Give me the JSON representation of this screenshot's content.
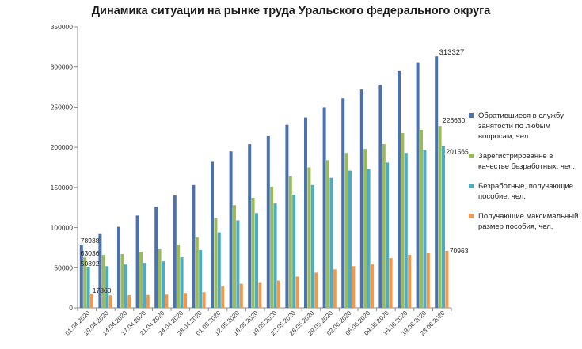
{
  "chart_data": {
    "type": "bar",
    "title": "Динамика ситуации  на рынке труда Уральского федерального округа",
    "categories": [
      "01.04.2020",
      "10.04.2020",
      "14.04.2020",
      "17.04.2020",
      "21.04.2020",
      "24.04.2020",
      "28.04.2020",
      "01.05.2020",
      "12.05.2020",
      "15.05.2020",
      "19.05.2020",
      "22.05.2020",
      "26.05.2020",
      "29.05.2020",
      "02.06.2020",
      "05.06.2020",
      "09.06.2020",
      "16.06.2020",
      "19.06.2020",
      "23.06.2020"
    ],
    "ylim": [
      0,
      350000
    ],
    "yticks": [
      0,
      50000,
      100000,
      150000,
      200000,
      250000,
      300000,
      350000
    ],
    "grid": false,
    "legend_position": "right",
    "series": [
      {
        "name": "Обратившиеся в службу занятости по любым вопросам, чел.",
        "color": "#4a72b0",
        "values": [
          78938,
          92000,
          101000,
          115000,
          126000,
          140000,
          153000,
          182000,
          195000,
          204000,
          214000,
          228000,
          237000,
          250000,
          261000,
          272000,
          278000,
          295000,
          306000,
          313327
        ]
      },
      {
        "name": "Зарегистрированне в качестве безработных, чел.",
        "color": "#9bbb59",
        "values": [
          63036,
          66000,
          67000,
          70000,
          73000,
          79000,
          88000,
          112000,
          128000,
          137000,
          151000,
          164000,
          175000,
          184000,
          193000,
          198000,
          204000,
          218000,
          222000,
          226630
        ]
      },
      {
        "name": "Безработные, получающие пособие, чел.",
        "color": "#4bacc6",
        "values": [
          50392,
          52000,
          54000,
          56000,
          58000,
          63000,
          72000,
          94000,
          109000,
          118000,
          130000,
          141000,
          153000,
          162000,
          171000,
          173000,
          181000,
          193000,
          197000,
          201565
        ]
      },
      {
        "name": "Получающие максимальный размер пособия, чел.",
        "color": "#f79646",
        "values": [
          17860,
          15500,
          15800,
          16000,
          16500,
          18500,
          19500,
          27000,
          30000,
          32000,
          34000,
          39000,
          44000,
          48000,
          52000,
          55000,
          62000,
          66000,
          68000,
          70963
        ]
      }
    ],
    "data_labels": [
      {
        "series": 0,
        "index": 0,
        "text": "78938"
      },
      {
        "series": 1,
        "index": 0,
        "text": "63036"
      },
      {
        "series": 2,
        "index": 0,
        "text": "50392"
      },
      {
        "series": 3,
        "index": 0,
        "text": "17860"
      },
      {
        "series": 0,
        "index": 19,
        "text": "313327"
      },
      {
        "series": 1,
        "index": 19,
        "text": "226630"
      },
      {
        "series": 2,
        "index": 19,
        "text": "201565"
      },
      {
        "series": 3,
        "index": 19,
        "text": "70963"
      }
    ]
  }
}
